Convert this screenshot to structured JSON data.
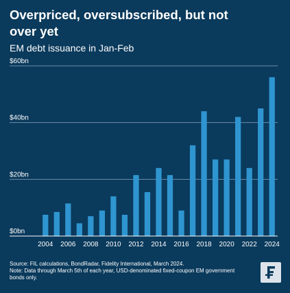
{
  "chart_data": {
    "type": "bar",
    "title_lines": [
      "Overpriced, oversubscribed, but not",
      "over yet"
    ],
    "subtitle": "EM debt issuance in Jan-Feb",
    "categories": [
      "2004",
      "2005",
      "2006",
      "2007",
      "2008",
      "2009",
      "2010",
      "2011",
      "2012",
      "2013",
      "2014",
      "2015",
      "2016",
      "2017",
      "2018",
      "2019",
      "2020",
      "2021",
      "2022",
      "2023",
      "2024"
    ],
    "x_tick_labels": [
      "2004",
      "",
      "2006",
      "",
      "2008",
      "",
      "2010",
      "",
      "2012",
      "",
      "2014",
      "",
      "2016",
      "",
      "2018",
      "",
      "2020",
      "",
      "2022",
      "",
      "2024"
    ],
    "values": [
      7.5,
      8.5,
      11.5,
      4.5,
      7,
      9,
      14,
      7.5,
      21.5,
      15.5,
      24,
      21.5,
      9,
      32,
      44,
      27,
      27,
      42,
      24,
      45,
      56
    ],
    "ylim": [
      0,
      60
    ],
    "y_ticks": [
      0,
      20,
      40,
      60
    ],
    "y_tick_labels": [
      "$0bn",
      "$20bn",
      "$40bn",
      "$60bn"
    ],
    "xlabel": "",
    "ylabel": "",
    "grid": true,
    "legend": "none"
  },
  "colors": {
    "background": "#0a3a5c",
    "bar": "#2f95d0",
    "gridline": "#6f8ea6",
    "text": "#ffffff",
    "logo_bg": "#dce3ea",
    "logo_fg": "#0a3a5c"
  },
  "footnote": {
    "line1": "Source: FIL calculations, BondRadar, Fidelity International, March 2024.",
    "line2": "Note: Data through March 5th of each year, USD-denominated fixed-coupon EM government bonds only."
  },
  "logo": {
    "icon": "fidelity-f-logo-icon"
  }
}
